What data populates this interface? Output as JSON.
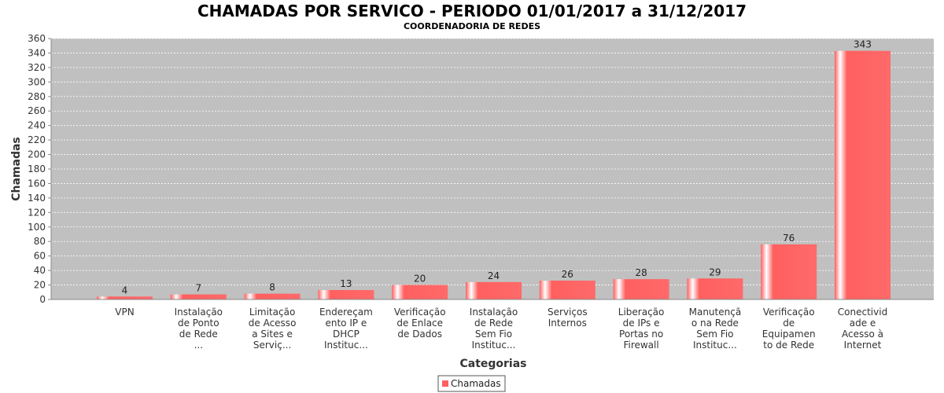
{
  "colors": {
    "bar": "#ff5f5f",
    "plot_background": "#c0c0c0",
    "gridline": "#ffffff"
  },
  "chart_data": {
    "type": "bar",
    "title": "CHAMADAS POR SERVICO - PERIODO 01/01/2017 a 31/12/2017",
    "subtitle": "COORDENADORIA DE REDES",
    "xlabel": "Categorias",
    "ylabel": "Chamadas",
    "ylim": [
      0,
      360
    ],
    "yticks": [
      0,
      20,
      40,
      60,
      80,
      100,
      120,
      140,
      160,
      180,
      200,
      220,
      240,
      260,
      280,
      300,
      320,
      340,
      360
    ],
    "grid": true,
    "legend_position": "bottom-center",
    "categories": [
      [
        "VPN"
      ],
      [
        "Instalação",
        "de Ponto",
        "de Rede",
        "..."
      ],
      [
        "Limitação",
        "de Acesso",
        "a Sites e",
        "Serviç..."
      ],
      [
        "Endereçam",
        "ento IP e",
        "DHCP",
        "Instituc..."
      ],
      [
        "Verificação",
        "de Enlace",
        "de Dados"
      ],
      [
        "Instalação",
        "de Rede",
        "Sem Fio",
        "Instituc..."
      ],
      [
        "Serviços",
        "Internos"
      ],
      [
        "Liberação",
        "de IPs e",
        "Portas no",
        "Firewall"
      ],
      [
        "Manutençã",
        "o na Rede",
        "Sem Fio",
        "Instituc..."
      ],
      [
        "Verificação",
        "de",
        "Equipamen",
        "to de Rede"
      ],
      [
        "Conectivid",
        "ade e",
        "Acesso à",
        "Internet"
      ]
    ],
    "series": [
      {
        "name": "Chamadas",
        "values": [
          4,
          7,
          8,
          13,
          20,
          24,
          26,
          28,
          29,
          76,
          343
        ]
      }
    ]
  }
}
